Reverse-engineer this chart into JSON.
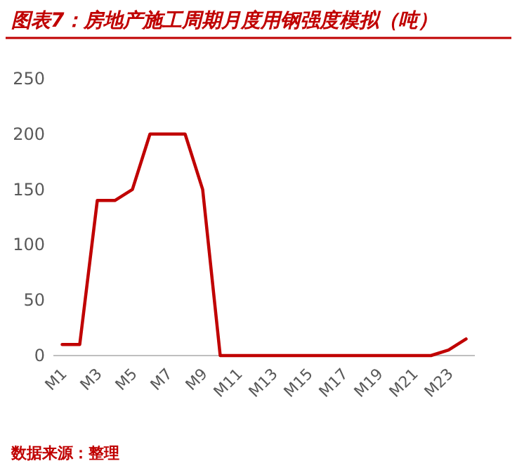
{
  "chart_data": {
    "type": "line",
    "title": "图表7：房地产施工周期月度用钢强度模拟（吨）",
    "categories": [
      "M1",
      null,
      "M3",
      null,
      "M5",
      null,
      "M7",
      null,
      "M9",
      null,
      "M11",
      null,
      "M13",
      null,
      "M15",
      null,
      "M17",
      null,
      "M19",
      null,
      "M21",
      null,
      "M23",
      null
    ],
    "series": [
      {
        "color": "#c00000",
        "values": [
          10,
          10,
          140,
          140,
          150,
          200,
          200,
          200,
          150,
          0,
          0,
          0,
          0,
          0,
          0,
          0,
          0,
          0,
          0,
          0,
          0,
          0,
          5,
          15
        ]
      }
    ],
    "ylim": [
      0,
      250
    ],
    "yticks": [
      0,
      50,
      100,
      150,
      200,
      250
    ],
    "grid": false,
    "marker": "none",
    "line_style": "solid",
    "annotations": [
      "数据来源：整理"
    ]
  }
}
